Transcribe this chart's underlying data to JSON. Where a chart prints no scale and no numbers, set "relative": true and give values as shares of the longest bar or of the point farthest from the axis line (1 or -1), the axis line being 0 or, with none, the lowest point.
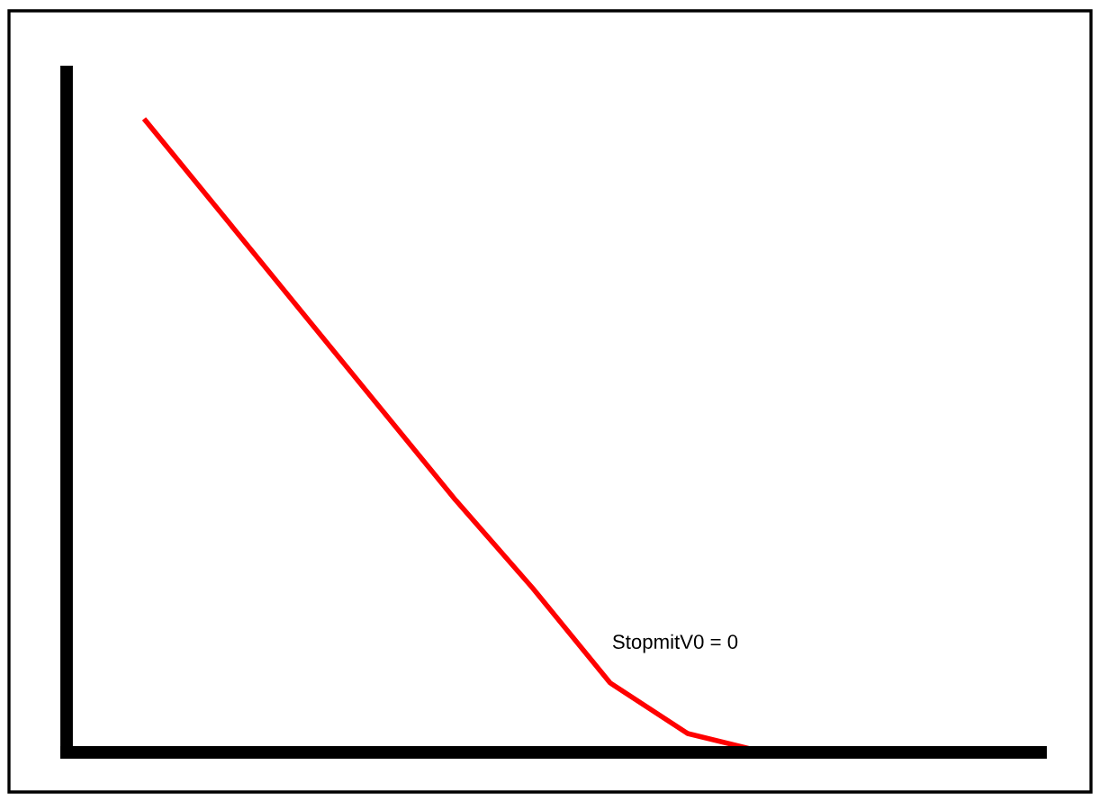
{
  "chart_data": {
    "type": "line",
    "relative": true,
    "categories": [
      null,
      null,
      null,
      null,
      null,
      null,
      null,
      null,
      null
    ],
    "series": [
      {
        "color": "#ff0000",
        "values": [
          1,
          0.85,
          0.7,
          0.55,
          0.4,
          0.26,
          0.11,
          0.03,
          0
        ]
      }
    ],
    "annotations": [
      "StopmitV0 = 0"
    ],
    "marker": "none",
    "line_style": "solid",
    "tick_labels": false
  }
}
